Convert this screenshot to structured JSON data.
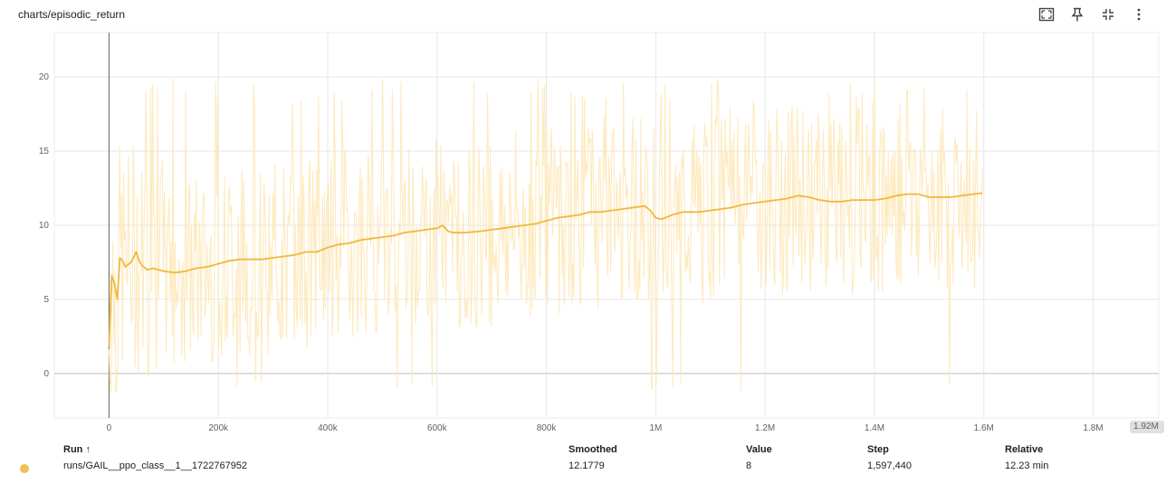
{
  "panel": {
    "title": "charts/episodic_return",
    "tools": [
      {
        "name": "fit-domain-icon"
      },
      {
        "name": "pin-icon"
      },
      {
        "name": "collapse-icon"
      },
      {
        "name": "more-vert-icon"
      }
    ]
  },
  "chart_data": {
    "type": "line",
    "xlim": [
      -100000,
      1920000
    ],
    "ylim": [
      -3,
      23
    ],
    "x_ticks": [
      0,
      200000,
      400000,
      600000,
      800000,
      1000000,
      1200000,
      1400000,
      1600000,
      1800000
    ],
    "x_tick_labels": [
      "0",
      "200k",
      "400k",
      "600k",
      "800k",
      "1M",
      "1.2M",
      "1.4M",
      "1.6M",
      "1.8M"
    ],
    "x_max_label": "1.92M",
    "y_ticks": [
      0,
      5,
      10,
      15,
      20
    ],
    "y_tick_labels": [
      "0",
      "5",
      "10",
      "15",
      "20"
    ],
    "grid": true,
    "raw_color": "#fde8b8",
    "smooth_color": "#f0b840",
    "series": [
      {
        "role": "smoothed",
        "x": [
          0,
          5000,
          10000,
          15000,
          20000,
          25000,
          30000,
          40000,
          50000,
          55000,
          60000,
          70000,
          80000,
          100000,
          120000,
          140000,
          160000,
          180000,
          200000,
          220000,
          240000,
          260000,
          280000,
          300000,
          320000,
          340000,
          360000,
          380000,
          400000,
          420000,
          440000,
          460000,
          480000,
          500000,
          520000,
          540000,
          560000,
          580000,
          600000,
          610000,
          620000,
          630000,
          650000,
          680000,
          700000,
          720000,
          740000,
          760000,
          780000,
          800000,
          820000,
          840000,
          860000,
          880000,
          900000,
          920000,
          940000,
          960000,
          980000,
          990000,
          1000000,
          1010000,
          1030000,
          1050000,
          1080000,
          1100000,
          1120000,
          1140000,
          1160000,
          1180000,
          1200000,
          1220000,
          1240000,
          1260000,
          1280000,
          1300000,
          1320000,
          1340000,
          1360000,
          1380000,
          1400000,
          1420000,
          1440000,
          1460000,
          1480000,
          1500000,
          1520000,
          1540000,
          1560000,
          1580000,
          1597440
        ],
        "y": [
          1.8,
          6.6,
          6.1,
          5.0,
          7.8,
          7.6,
          7.2,
          7.5,
          8.2,
          7.6,
          7.3,
          7.0,
          7.1,
          6.9,
          6.8,
          6.9,
          7.1,
          7.2,
          7.4,
          7.6,
          7.7,
          7.7,
          7.7,
          7.8,
          7.9,
          8.0,
          8.2,
          8.2,
          8.5,
          8.7,
          8.8,
          9.0,
          9.1,
          9.2,
          9.3,
          9.5,
          9.6,
          9.7,
          9.8,
          10.0,
          9.6,
          9.5,
          9.5,
          9.6,
          9.7,
          9.8,
          9.9,
          10.0,
          10.1,
          10.3,
          10.5,
          10.6,
          10.7,
          10.9,
          10.9,
          11.0,
          11.1,
          11.2,
          11.3,
          11.0,
          10.5,
          10.4,
          10.7,
          10.9,
          10.9,
          11.0,
          11.1,
          11.2,
          11.4,
          11.5,
          11.6,
          11.7,
          11.8,
          12.0,
          11.9,
          11.7,
          11.6,
          11.6,
          11.7,
          11.7,
          11.7,
          11.8,
          12.0,
          12.1,
          12.1,
          11.9,
          11.9,
          11.9,
          12.0,
          12.1,
          12.18
        ]
      }
    ]
  },
  "legend": {
    "headers": {
      "run": "Run ↑",
      "smoothed": "Smoothed",
      "value": "Value",
      "step": "Step",
      "relative": "Relative"
    },
    "rows": [
      {
        "run": "runs/GAIL__ppo_class__1__1722767952",
        "smoothed": "12.1779",
        "value": "8",
        "step": "1,597,440",
        "relative": "12.23 min",
        "color": "#f0c050"
      }
    ]
  }
}
